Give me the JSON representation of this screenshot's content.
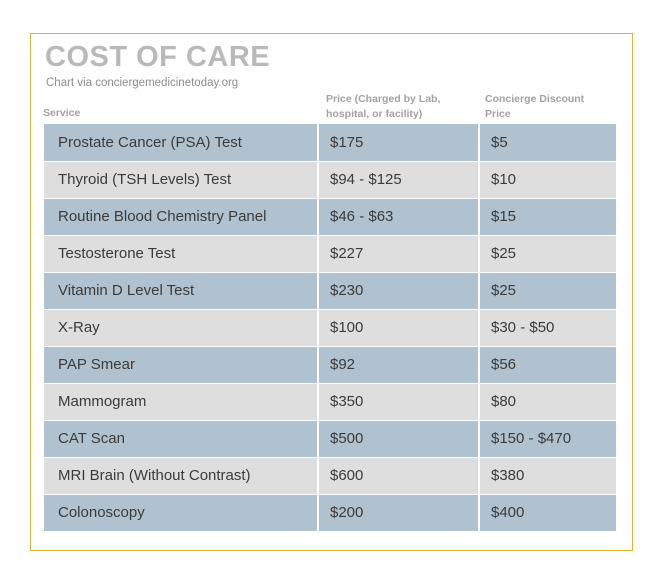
{
  "header": {
    "title": "COST OF CARE",
    "subtitle": "Chart via conciergemedicinetoday.org"
  },
  "chart_data": {
    "type": "table",
    "title": "COST OF CARE",
    "subtitle": "Chart via conciergemedicinetoday.org",
    "columns": [
      "Service",
      "Price (Charged by Lab, hospital, or facility)",
      "Concierge Discount Price"
    ],
    "column_lines": {
      "price": [
        "Price (Charged by Lab,",
        "hospital, or facility)"
      ],
      "discount": [
        "Concierge Discount",
        "Price"
      ]
    },
    "rows": [
      [
        "Prostate Cancer (PSA) Test",
        "$175",
        "$5"
      ],
      [
        "Thyroid (TSH Levels) Test",
        "$94 - $125",
        "$10"
      ],
      [
        "Routine Blood Chemistry Panel",
        "$46 - $63",
        "$15"
      ],
      [
        "Testosterone Test",
        "$227",
        "$25"
      ],
      [
        "Vitamin D Level Test",
        "$230",
        "$25"
      ],
      [
        "X-Ray",
        "$100",
        "$30 - $50"
      ],
      [
        "PAP Smear",
        "$92",
        "$56"
      ],
      [
        "Mammogram",
        "$350",
        "$80"
      ],
      [
        "CAT Scan",
        "$500",
        "$150 - $470"
      ],
      [
        "MRI Brain (Without Contrast)",
        "$600",
        "$380"
      ],
      [
        "Colonoscopy",
        "$200",
        "$400"
      ]
    ]
  },
  "colors": {
    "frame_border": "#d8b63a",
    "row_blue": "#b0c2cf",
    "row_gray": "#dedede",
    "title": "#b9b9b9",
    "text": "#3b3b3b"
  }
}
